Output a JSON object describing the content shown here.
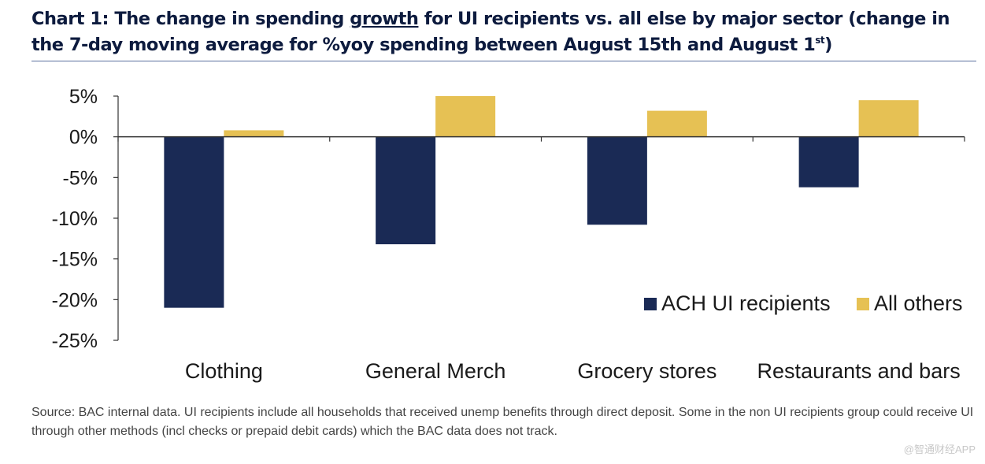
{
  "title": {
    "part1": "Chart 1: The change in spending ",
    "underlined": "growth",
    "part2": " for UI recipients vs. all else by major sector (change in the 7-day moving average for %yoy spending between August 15th and August 1",
    "sup": "st",
    "part3": ")"
  },
  "source_note": "Source: BAC internal data. UI recipients include all households that received unemp benefits through direct deposit. Some in the non UI recipients group could receive UI through other methods (incl checks or prepaid debit cards) which the BAC data does not track.",
  "watermark": "@智通财经APP",
  "colors": {
    "ui": "#1a2a55",
    "others": "#e6c154",
    "axis": "#333333",
    "text": "#1a1a1a"
  },
  "chart_data": {
    "type": "bar",
    "title": "Chart 1: The change in spending growth for UI recipients vs. all else by major sector",
    "categories": [
      "Clothing",
      "General Merch",
      "Grocery stores",
      "Restaurants and bars"
    ],
    "series": [
      {
        "name": "ACH UI recipients",
        "values": [
          -21,
          -13.2,
          -10.8,
          -6.2
        ]
      },
      {
        "name": "All others",
        "values": [
          0.8,
          5.0,
          3.2,
          4.5
        ]
      }
    ],
    "yticks": [
      "5%",
      "0%",
      "-5%",
      "-10%",
      "-15%",
      "-20%",
      "-25%"
    ],
    "ylim": [
      -25,
      5
    ],
    "xlabel": "",
    "ylabel": "",
    "legend": "bottom-right"
  }
}
